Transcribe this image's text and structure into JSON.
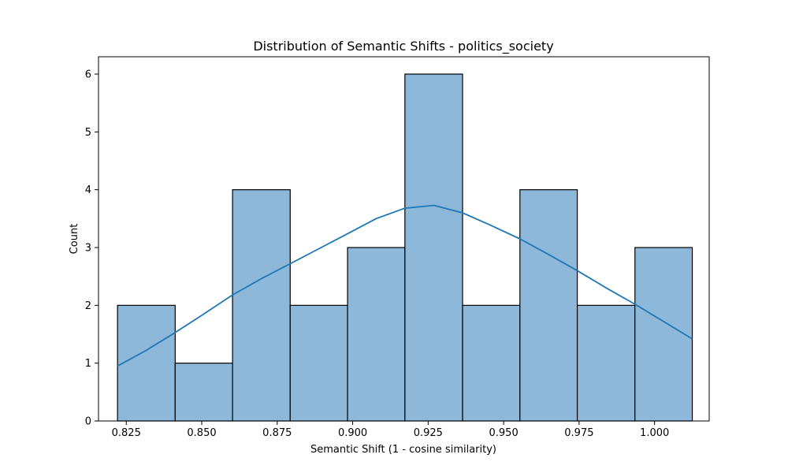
{
  "chart_data": {
    "type": "bar",
    "title": "Distribution of Semantic Shifts - politics_society",
    "xlabel": "Semantic Shift (1 - cosine similarity)",
    "ylabel": "Count",
    "xlim": [
      0.8158,
      1.0181
    ],
    "ylim": [
      0,
      6.3
    ],
    "x_ticks": [
      0.825,
      0.85,
      0.875,
      0.9,
      0.925,
      0.95,
      0.975,
      1.0
    ],
    "x_tick_labels": [
      "0.825",
      "0.850",
      "0.875",
      "0.900",
      "0.925",
      "0.950",
      "0.975",
      "1.000"
    ],
    "y_ticks": [
      0,
      1,
      2,
      3,
      4,
      5,
      6
    ],
    "y_tick_labels": [
      "0",
      "1",
      "2",
      "3",
      "4",
      "5",
      "6"
    ],
    "bin_edges": [
      0.8221,
      0.8412,
      0.8602,
      0.8793,
      0.8983,
      0.9173,
      0.9364,
      0.9554,
      0.9744,
      0.9935,
      1.0125
    ],
    "counts": [
      2,
      1,
      4,
      2,
      3,
      6,
      2,
      4,
      2,
      3
    ],
    "kde": {
      "x": [
        0.8221,
        0.8316,
        0.8412,
        0.8507,
        0.8602,
        0.8697,
        0.8793,
        0.8888,
        0.8983,
        0.9078,
        0.9173,
        0.9269,
        0.9364,
        0.9459,
        0.9554,
        0.9649,
        0.9744,
        0.984,
        0.9935,
        1.003,
        1.0125
      ],
      "y": [
        0.95,
        1.22,
        1.53,
        1.85,
        2.18,
        2.46,
        2.72,
        2.98,
        3.24,
        3.5,
        3.68,
        3.73,
        3.6,
        3.38,
        3.15,
        2.88,
        2.6,
        2.3,
        2.02,
        1.72,
        1.42
      ]
    },
    "colors": {
      "bar_fill": "#8db8da",
      "bar_edge": "#000000",
      "kde_line": "#1f77b4"
    },
    "grid": false,
    "legend": "none"
  }
}
